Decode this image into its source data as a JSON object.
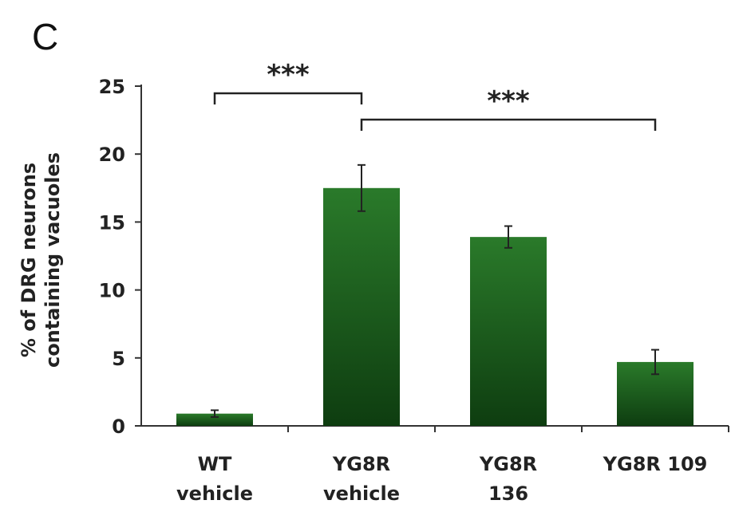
{
  "panel_label": "C",
  "colors": {
    "bar_top": "#2a7a2a",
    "bar_bottom": "#0e3d10",
    "axis": "#333333"
  },
  "chart_data": {
    "type": "bar",
    "categories": [
      [
        "WT",
        "vehicle"
      ],
      [
        "YG8R",
        "vehicle"
      ],
      [
        "YG8R",
        "136"
      ],
      [
        "YG8R 109"
      ]
    ],
    "values": [
      0.9,
      17.5,
      13.9,
      4.7
    ],
    "errors": [
      0.25,
      1.7,
      0.8,
      0.9
    ],
    "ylabel": [
      "% of DRG neurons",
      "containing vacuoles"
    ],
    "ylim": [
      0,
      25
    ],
    "yticks": [
      0,
      5,
      10,
      15,
      20,
      25
    ],
    "significance": [
      {
        "from": 0,
        "to": 1,
        "label": "***"
      },
      {
        "from": 1,
        "to": 3,
        "label": "***"
      }
    ],
    "grid": false
  }
}
